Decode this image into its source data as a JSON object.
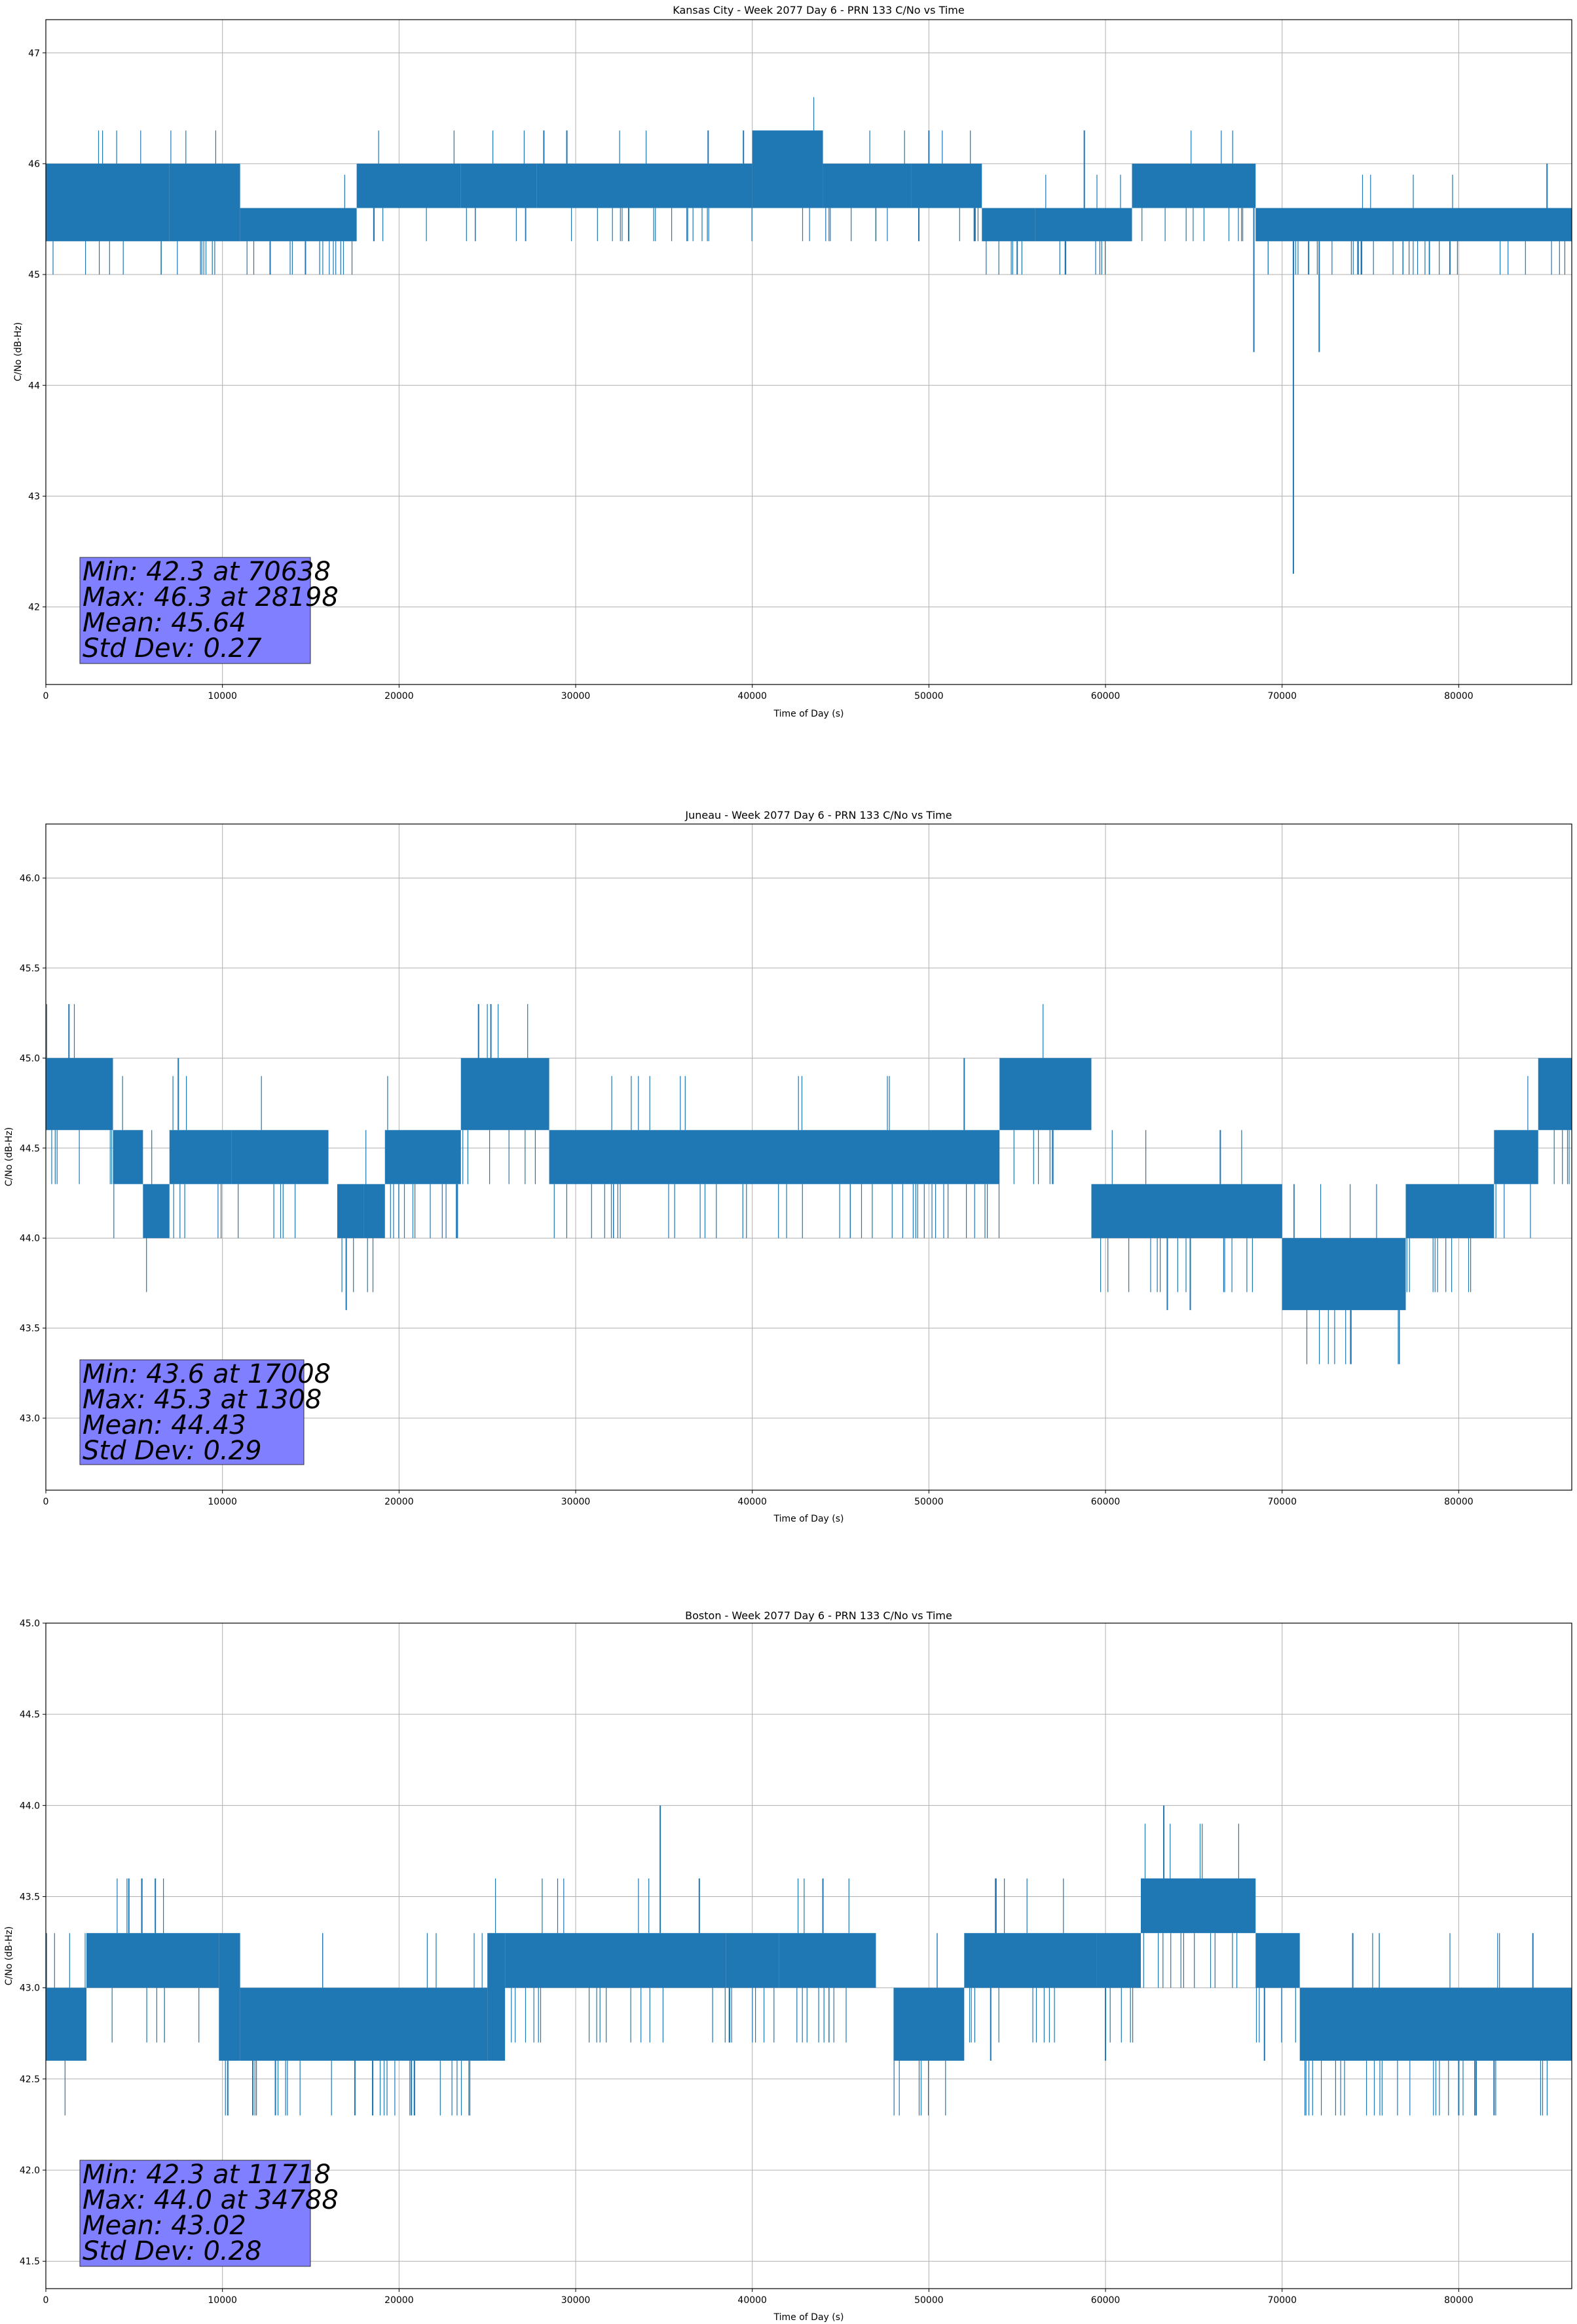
{
  "chart_data": [
    {
      "type": "line",
      "title": "Kansas City - Week 2077 Day 6 - PRN 133 C/No vs Time",
      "xlabel": "Time of Day (s)",
      "ylabel": "C/No (dB-Hz)",
      "xlim": [
        0,
        86400
      ],
      "ylim": [
        41.3,
        47.3
      ],
      "xticks": [
        0,
        10000,
        20000,
        30000,
        40000,
        50000,
        60000,
        70000,
        80000
      ],
      "xtick_labels": [
        "0",
        "10000",
        "20000",
        "30000",
        "40000",
        "50000",
        "60000",
        "70000",
        "80000"
      ],
      "yticks": [
        42,
        43,
        44,
        45,
        46,
        47
      ],
      "ytick_labels": [
        "42",
        "43",
        "44",
        "45",
        "46",
        "47"
      ],
      "grid": true,
      "color": "#1f77b4",
      "segments": [
        {
          "x": [
            0,
            7000
          ],
          "lo": 45.3,
          "hi": 46.0
        },
        {
          "x": [
            7000,
            11000
          ],
          "lo": 45.3,
          "hi": 46.0
        },
        {
          "x": [
            11000,
            17600
          ],
          "lo": 45.3,
          "hi": 45.6
        },
        {
          "x": [
            17600,
            23500
          ],
          "lo": 45.6,
          "hi": 46.0
        },
        {
          "x": [
            23500,
            27800
          ],
          "lo": 45.6,
          "hi": 46.0
        },
        {
          "x": [
            27800,
            40000
          ],
          "lo": 45.6,
          "hi": 46.0
        },
        {
          "x": [
            40000,
            44000
          ],
          "lo": 45.6,
          "hi": 46.3
        },
        {
          "x": [
            44000,
            49000
          ],
          "lo": 45.6,
          "hi": 46.0
        },
        {
          "x": [
            49000,
            53000
          ],
          "lo": 45.6,
          "hi": 46.0
        },
        {
          "x": [
            53000,
            56000
          ],
          "lo": 45.3,
          "hi": 45.6
        },
        {
          "x": [
            56000,
            61500
          ],
          "lo": 45.3,
          "hi": 45.6
        },
        {
          "x": [
            61500,
            68500
          ],
          "lo": 45.6,
          "hi": 46.0
        },
        {
          "x": [
            68500,
            86400
          ],
          "lo": 45.3,
          "hi": 45.6
        }
      ],
      "spikes": [
        {
          "x": 12700,
          "y": 45.0
        },
        {
          "x": 14700,
          "y": 45.0
        },
        {
          "x": 28198,
          "y": 46.3
        },
        {
          "x": 29500,
          "y": 46.3
        },
        {
          "x": 33000,
          "y": 45.3
        },
        {
          "x": 37500,
          "y": 46.3
        },
        {
          "x": 39500,
          "y": 46.3
        },
        {
          "x": 50000,
          "y": 46.3
        },
        {
          "x": 55000,
          "y": 45.0
        },
        {
          "x": 58800,
          "y": 46.3
        },
        {
          "x": 68400,
          "y": 44.3
        },
        {
          "x": 70638,
          "y": 42.3
        },
        {
          "x": 71500,
          "y": 45.0
        },
        {
          "x": 72100,
          "y": 44.3
        },
        {
          "x": 74500,
          "y": 45.0
        },
        {
          "x": 79500,
          "y": 45.0
        },
        {
          "x": 85000,
          "y": 46.0
        }
      ],
      "stats": {
        "min_label": "Min: 42.3 at 70638",
        "max_label": "Max: 46.3 at 28198",
        "mean_label": "Mean: 45.64",
        "std_label": "Std Dev: 0.27"
      }
    },
    {
      "type": "line",
      "title": "Juneau - Week 2077 Day 6 - PRN 133 C/No vs Time",
      "xlabel": "Time of Day (s)",
      "ylabel": "C/No (dB-Hz)",
      "xlim": [
        0,
        86400
      ],
      "ylim": [
        42.6,
        46.3
      ],
      "xticks": [
        0,
        10000,
        20000,
        30000,
        40000,
        50000,
        60000,
        70000,
        80000
      ],
      "xtick_labels": [
        "0",
        "10000",
        "20000",
        "30000",
        "40000",
        "50000",
        "60000",
        "70000",
        "80000"
      ],
      "yticks": [
        43.0,
        43.5,
        44.0,
        44.5,
        45.0,
        45.5,
        46.0
      ],
      "ytick_labels": [
        "43.0",
        "43.5",
        "44.0",
        "44.5",
        "45.0",
        "45.5",
        "46.0"
      ],
      "grid": true,
      "color": "#1f77b4",
      "segments": [
        {
          "x": [
            0,
            3800
          ],
          "lo": 44.6,
          "hi": 45.0
        },
        {
          "x": [
            3800,
            5500
          ],
          "lo": 44.3,
          "hi": 44.6
        },
        {
          "x": [
            5500,
            7000
          ],
          "lo": 44.0,
          "hi": 44.3
        },
        {
          "x": [
            7000,
            10500
          ],
          "lo": 44.3,
          "hi": 44.6
        },
        {
          "x": [
            10500,
            16000
          ],
          "lo": 44.3,
          "hi": 44.6
        },
        {
          "x": [
            16500,
            18000
          ],
          "lo": 44.0,
          "hi": 44.3
        },
        {
          "x": [
            18000,
            19200
          ],
          "lo": 44.0,
          "hi": 44.3
        },
        {
          "x": [
            19200,
            23500
          ],
          "lo": 44.3,
          "hi": 44.6
        },
        {
          "x": [
            23500,
            28500
          ],
          "lo": 44.6,
          "hi": 45.0
        },
        {
          "x": [
            28500,
            54000
          ],
          "lo": 44.3,
          "hi": 44.6
        },
        {
          "x": [
            54000,
            59200
          ],
          "lo": 44.6,
          "hi": 45.0
        },
        {
          "x": [
            59200,
            62000
          ],
          "lo": 44.0,
          "hi": 44.3
        },
        {
          "x": [
            62000,
            70000
          ],
          "lo": 44.0,
          "hi": 44.3
        },
        {
          "x": [
            70000,
            77000
          ],
          "lo": 43.6,
          "hi": 44.0
        },
        {
          "x": [
            77000,
            82000
          ],
          "lo": 44.0,
          "hi": 44.3
        },
        {
          "x": [
            82000,
            84500
          ],
          "lo": 44.3,
          "hi": 44.6
        },
        {
          "x": [
            84500,
            86400
          ],
          "lo": 44.6,
          "hi": 45.0
        }
      ],
      "spikes": [
        {
          "x": 1308,
          "y": 45.3
        },
        {
          "x": 7500,
          "y": 45.0
        },
        {
          "x": 17008,
          "y": 43.6
        },
        {
          "x": 23300,
          "y": 44.0
        },
        {
          "x": 24500,
          "y": 45.3
        },
        {
          "x": 25200,
          "y": 45.3
        },
        {
          "x": 52000,
          "y": 45.0
        },
        {
          "x": 63500,
          "y": 43.6
        },
        {
          "x": 64800,
          "y": 43.6
        },
        {
          "x": 66500,
          "y": 44.6
        }
      ],
      "stats": {
        "min_label": "Min: 43.6 at 17008",
        "max_label": "Max: 45.3 at 1308",
        "mean_label": "Mean: 44.43",
        "std_label": "Std Dev: 0.29"
      }
    },
    {
      "type": "line",
      "title": "Boston - Week 2077 Day 6 - PRN 133 C/No vs Time",
      "xlabel": "Time of Day (s)",
      "ylabel": "C/No (dB-Hz)",
      "xlim": [
        0,
        86400
      ],
      "ylim": [
        41.35,
        45.0
      ],
      "xticks": [
        0,
        10000,
        20000,
        30000,
        40000,
        50000,
        60000,
        70000,
        80000
      ],
      "xtick_labels": [
        "0",
        "10000",
        "20000",
        "30000",
        "40000",
        "50000",
        "60000",
        "70000",
        "80000"
      ],
      "yticks": [
        41.5,
        42.0,
        42.5,
        43.0,
        43.5,
        44.0,
        44.5,
        45.0
      ],
      "ytick_labels": [
        "41.5",
        "42.0",
        "42.5",
        "43.0",
        "43.5",
        "44.0",
        "44.5",
        "45.0"
      ],
      "grid": true,
      "color": "#1f77b4",
      "segments": [
        {
          "x": [
            0,
            2300
          ],
          "lo": 42.6,
          "hi": 43.0
        },
        {
          "x": [
            2300,
            9800
          ],
          "lo": 43.0,
          "hi": 43.3
        },
        {
          "x": [
            9800,
            11000
          ],
          "lo": 42.6,
          "hi": 43.3
        },
        {
          "x": [
            11000,
            25000
          ],
          "lo": 42.6,
          "hi": 43.0
        },
        {
          "x": [
            25000,
            26000
          ],
          "lo": 42.6,
          "hi": 43.3
        },
        {
          "x": [
            26000,
            30000
          ],
          "lo": 43.0,
          "hi": 43.3
        },
        {
          "x": [
            30000,
            38500
          ],
          "lo": 43.0,
          "hi": 43.3
        },
        {
          "x": [
            38500,
            41500
          ],
          "lo": 43.0,
          "hi": 43.3
        },
        {
          "x": [
            41500,
            47000
          ],
          "lo": 43.0,
          "hi": 43.3
        },
        {
          "x": [
            48000,
            52000
          ],
          "lo": 42.6,
          "hi": 43.0
        },
        {
          "x": [
            52000,
            59500
          ],
          "lo": 43.0,
          "hi": 43.3
        },
        {
          "x": [
            59500,
            62000
          ],
          "lo": 43.0,
          "hi": 43.3
        },
        {
          "x": [
            62000,
            68500
          ],
          "lo": 43.3,
          "hi": 43.6
        },
        {
          "x": [
            68500,
            71000
          ],
          "lo": 43.0,
          "hi": 43.3
        },
        {
          "x": [
            71000,
            86400
          ],
          "lo": 42.6,
          "hi": 43.0
        }
      ],
      "spikes": [
        {
          "x": 4700,
          "y": 43.6
        },
        {
          "x": 6200,
          "y": 43.6
        },
        {
          "x": 11718,
          "y": 42.3
        },
        {
          "x": 13000,
          "y": 42.3
        },
        {
          "x": 17500,
          "y": 42.3
        },
        {
          "x": 20700,
          "y": 42.3
        },
        {
          "x": 34788,
          "y": 44.0
        },
        {
          "x": 37000,
          "y": 43.6
        },
        {
          "x": 44000,
          "y": 43.6
        },
        {
          "x": 53500,
          "y": 42.6
        },
        {
          "x": 53800,
          "y": 43.6
        },
        {
          "x": 60000,
          "y": 42.6
        },
        {
          "x": 63300,
          "y": 44.0
        },
        {
          "x": 69000,
          "y": 42.6
        },
        {
          "x": 74000,
          "y": 43.3
        },
        {
          "x": 80000,
          "y": 42.3
        },
        {
          "x": 82000,
          "y": 42.3
        },
        {
          "x": 84200,
          "y": 43.3
        }
      ],
      "stats": {
        "min_label": "Min: 42.3 at 11718",
        "max_label": "Max: 44.0 at 34788",
        "mean_label": "Mean: 43.02",
        "std_label": "Std Dev: 0.28"
      }
    }
  ]
}
